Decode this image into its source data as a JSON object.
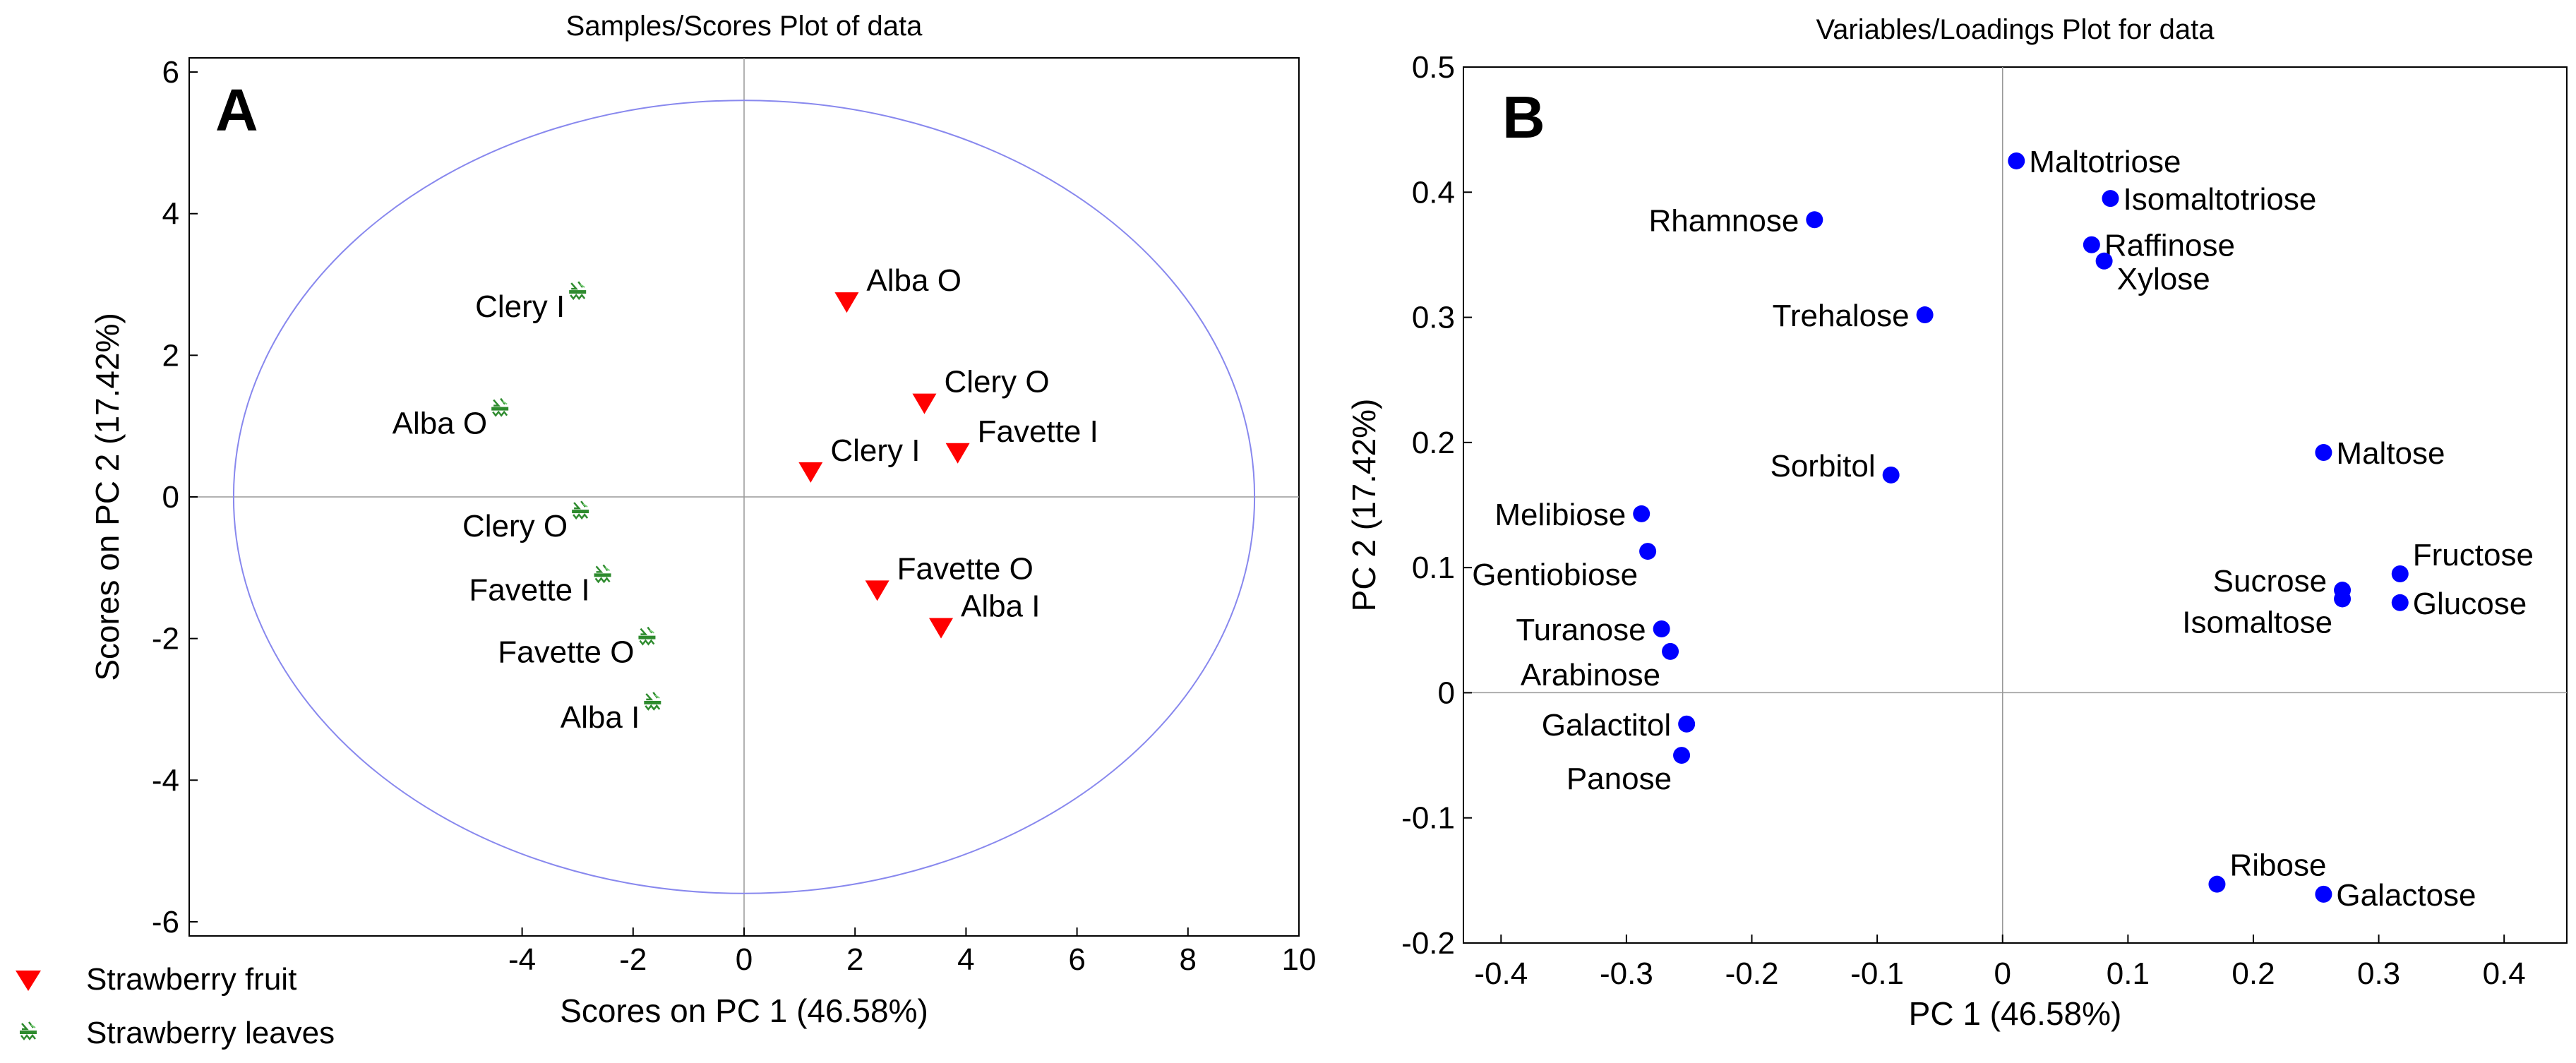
{
  "chart_data": [
    {
      "panel": "A",
      "type": "scatter",
      "title": "Samples/Scores Plot of data",
      "xlabel": "Scores on PC 1 (46.58%)",
      "ylabel": "Scores on PC 2 (17.42%)",
      "xlim": [
        -10,
        10
      ],
      "ylim": [
        -6.2,
        6.2
      ],
      "xticks": [
        -4,
        -2,
        0,
        2,
        4,
        6,
        8,
        10
      ],
      "yticks": [
        -6,
        -4,
        -2,
        0,
        2,
        4,
        6
      ],
      "confidence_ellipse": {
        "center": [
          0,
          0
        ],
        "semi_axis_x": 9.2,
        "semi_axis_y": 5.6
      },
      "series": [
        {
          "name": "Strawberry fruit",
          "marker": "triangle-down",
          "color": "#ff0000",
          "points": [
            {
              "label": "Alba O",
              "x": 1.85,
              "y": 2.75
            },
            {
              "label": "Clery O",
              "x": 3.25,
              "y": 1.32
            },
            {
              "label": "Favette I",
              "x": 3.85,
              "y": 0.62
            },
            {
              "label": "Clery I",
              "x": 1.2,
              "y": 0.35
            },
            {
              "label": "Favette O",
              "x": 2.4,
              "y": -1.32
            },
            {
              "label": "Alba I",
              "x": 3.55,
              "y": -1.85
            }
          ]
        },
        {
          "name": "Strawberry leaves",
          "marker": "leaf",
          "color": "#2e8b2e",
          "points": [
            {
              "label": "Clery I",
              "x": -3.0,
              "y": 2.9
            },
            {
              "label": "Alba O",
              "x": -4.4,
              "y": 1.25
            },
            {
              "label": "Clery O",
              "x": -2.95,
              "y": -0.2
            },
            {
              "label": "Favette I",
              "x": -2.55,
              "y": -1.1
            },
            {
              "label": "Favette O",
              "x": -1.75,
              "y": -1.98
            },
            {
              "label": "Alba I",
              "x": -1.65,
              "y": -2.9
            }
          ]
        }
      ],
      "legend": {
        "placement": "bottom-left",
        "entries": [
          {
            "label": "Strawberry fruit",
            "marker": "triangle-down"
          },
          {
            "label": "Strawberry leaves",
            "marker": "leaf"
          }
        ]
      }
    },
    {
      "panel": "B",
      "type": "scatter",
      "title": "Variables/Loadings Plot for data",
      "xlabel": "PC 1 (46.58%)",
      "ylabel": "PC 2 (17.42%)",
      "xlim": [
        -0.43,
        0.45
      ],
      "ylim": [
        -0.2,
        0.5
      ],
      "xticks": [
        -0.4,
        -0.3,
        -0.2,
        -0.1,
        0,
        0.1,
        0.2,
        0.3,
        0.4
      ],
      "xtick_labels": [
        "-0.4",
        "-0.3",
        "-0.2",
        "-0.1",
        "0",
        "0.1",
        "0.2",
        "0.3",
        "0.4"
      ],
      "yticks": [
        -0.2,
        -0.1,
        0,
        0.1,
        0.2,
        0.3,
        0.4,
        0.5
      ],
      "ytick_labels": [
        "-0.2",
        "-0.1",
        "0",
        "0.1",
        "0.2",
        "0.3",
        "0.4",
        "0.5"
      ],
      "marker_color": "#0000ff",
      "points": [
        {
          "label": "Maltotriose",
          "x": 0.011,
          "y": 0.425,
          "anchor": "right"
        },
        {
          "label": "Isomaltotriose",
          "x": 0.086,
          "y": 0.395,
          "anchor": "right"
        },
        {
          "label": "Raffinose",
          "x": 0.071,
          "y": 0.358,
          "anchor": "right"
        },
        {
          "label": "Xylose",
          "x": 0.081,
          "y": 0.345,
          "anchor": "right-below"
        },
        {
          "label": "Rhamnose",
          "x": -0.15,
          "y": 0.378,
          "anchor": "left"
        },
        {
          "label": "Trehalose",
          "x": -0.062,
          "y": 0.302,
          "anchor": "left"
        },
        {
          "label": "Sorbitol",
          "x": -0.089,
          "y": 0.174,
          "anchor": "left-above"
        },
        {
          "label": "Maltose",
          "x": 0.256,
          "y": 0.192,
          "anchor": "right"
        },
        {
          "label": "Melibiose",
          "x": -0.288,
          "y": 0.143,
          "anchor": "left"
        },
        {
          "label": "Gentiobiose",
          "x": -0.283,
          "y": 0.113,
          "anchor": "left-below"
        },
        {
          "label": "Sucrose",
          "x": 0.271,
          "y": 0.082,
          "anchor": "left-above"
        },
        {
          "label": "Isomaltose",
          "x": 0.271,
          "y": 0.075,
          "anchor": "left-below"
        },
        {
          "label": "Fructose",
          "x": 0.317,
          "y": 0.095,
          "anchor": "right-above"
        },
        {
          "label": "Glucose",
          "x": 0.317,
          "y": 0.072,
          "anchor": "right"
        },
        {
          "label": "Turanose",
          "x": -0.272,
          "y": 0.051,
          "anchor": "left"
        },
        {
          "label": "Arabinose",
          "x": -0.265,
          "y": 0.033,
          "anchor": "left-below"
        },
        {
          "label": "Galactitol",
          "x": -0.252,
          "y": -0.025,
          "anchor": "left"
        },
        {
          "label": "Panose",
          "x": -0.256,
          "y": -0.05,
          "anchor": "left-below"
        },
        {
          "label": "Ribose",
          "x": 0.171,
          "y": -0.153,
          "anchor": "right-above"
        },
        {
          "label": "Galactose",
          "x": 0.256,
          "y": -0.161,
          "anchor": "right"
        }
      ]
    }
  ]
}
